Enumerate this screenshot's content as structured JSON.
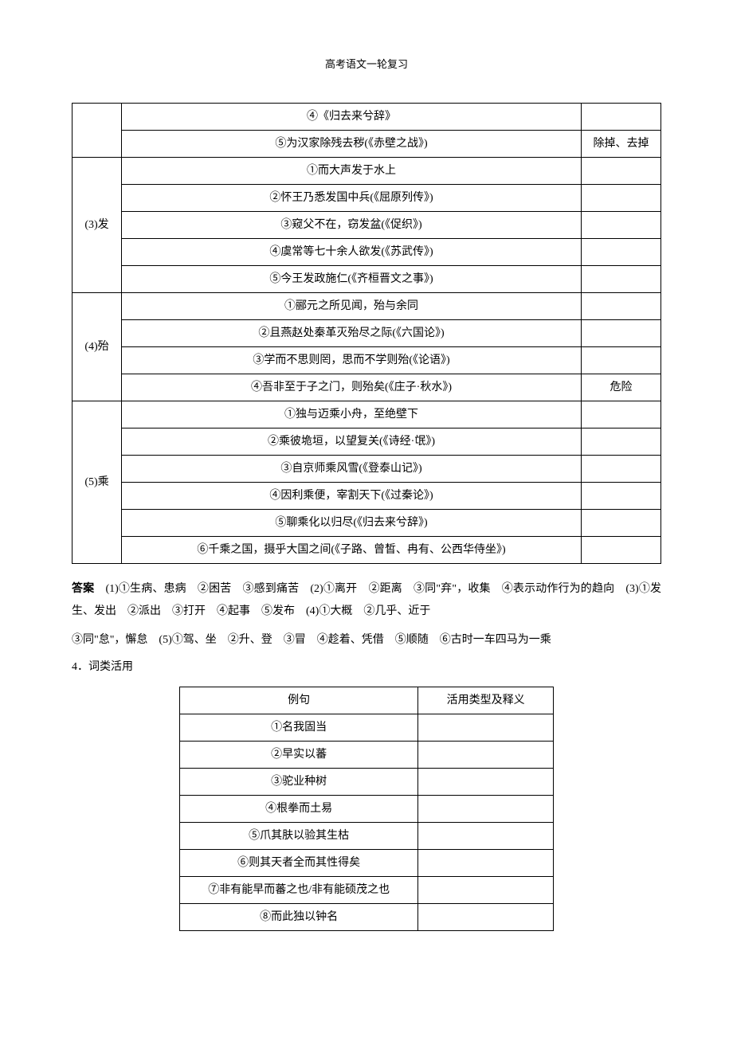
{
  "header": "高考语文一轮复习",
  "table1": {
    "groups": [
      {
        "label": "",
        "rows": [
          {
            "example": "④《归去来兮辞》",
            "meaning": ""
          },
          {
            "example": "⑤为汉家除残去秽(《赤壁之战》)",
            "meaning": "除掉、去掉"
          }
        ]
      },
      {
        "label": "(3)发",
        "rows": [
          {
            "example": "①而大声发于水上",
            "meaning": ""
          },
          {
            "example": "②怀王乃悉发国中兵(《屈原列传》)",
            "meaning": ""
          },
          {
            "example": "③窥父不在，窃发盆(《促织》)",
            "meaning": ""
          },
          {
            "example": "④虞常等七十余人欲发(《苏武传》)",
            "meaning": ""
          },
          {
            "example": "⑤今王发政施仁(《齐桓晋文之事》)",
            "meaning": ""
          }
        ]
      },
      {
        "label": "(4)殆",
        "rows": [
          {
            "example": "①郦元之所见闻，殆与余同",
            "meaning": ""
          },
          {
            "example": "②且燕赵处秦革灭殆尽之际(《六国论》)",
            "meaning": ""
          },
          {
            "example": "③学而不思则罔，思而不学则殆(《论语》)",
            "meaning": ""
          },
          {
            "example": "④吾非至于子之门，则殆矣(《庄子·秋水》)",
            "meaning": "危险"
          }
        ]
      },
      {
        "label": "(5)乘",
        "rows": [
          {
            "example": "①独与迈乘小舟，至绝壁下",
            "meaning": ""
          },
          {
            "example": "②乘彼垝垣，以望复关(《诗经·氓》)",
            "meaning": ""
          },
          {
            "example": "③自京师乘风雪(《登泰山记》)",
            "meaning": ""
          },
          {
            "example": "④因利乘便，宰割天下(《过秦论》)",
            "meaning": ""
          },
          {
            "example": "⑤聊乘化以归尽(《归去来兮辞》)",
            "meaning": ""
          },
          {
            "example": "⑥千乘之国，摄乎大国之间(《子路、曾皙、冉有、公西华侍坐》)",
            "meaning": ""
          }
        ]
      }
    ]
  },
  "answers": {
    "label": "答案",
    "line1": "　(1)①生病、患病　②困苦　③感到痛苦　(2)①离开　②距离　③同\"弃\"，收集　④表示动作行为的趋向　(3)①发生、发出　②派出　③打开　④起事　⑤发布　(4)①大概　②几乎、近于",
    "line2": "③同\"怠\"，懈怠　(5)①驾、坐　②升、登　③冒　④趁着、凭借　⑤顺随　⑥古时一车四马为一乘"
  },
  "section4": {
    "title": "4．词类活用",
    "header": {
      "c1": "例句",
      "c2": "活用类型及释义"
    },
    "rows": [
      "①名我固当",
      "②早实以蕃",
      "③驼业种树",
      "④根拳而土易",
      "⑤爪其肤以验其生枯",
      "⑥则其天者全而其性得矣",
      "⑦非有能早而蕃之也/非有能硕茂之也",
      "⑧而此独以钟名"
    ]
  }
}
